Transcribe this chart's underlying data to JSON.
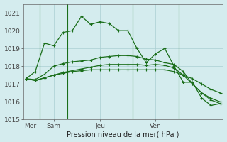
{
  "title": "Pression niveau de la mer( hPa )",
  "background_color": "#d4ecee",
  "grid_color": "#aacfd2",
  "line_color": "#1a6e1a",
  "ylim": [
    1015,
    1021.5
  ],
  "yticks": [
    1015,
    1016,
    1017,
    1018,
    1019,
    1020,
    1021
  ],
  "n_points": 22,
  "vline_positions": [
    1.5,
    4.5,
    11.5,
    16.5
  ],
  "xtick_positions": [
    0.5,
    3.0,
    8.0,
    14.0
  ],
  "day_labels": [
    "Mer",
    "Sam",
    "Jeu",
    "Ven"
  ],
  "series": [
    [
      1017.3,
      1017.7,
      1019.3,
      1019.15,
      1019.9,
      1020.0,
      1020.8,
      1020.35,
      1020.5,
      1020.4,
      1020.0,
      1020.0,
      1019.0,
      1018.2,
      1018.7,
      1019.0,
      1018.0,
      1017.1,
      1017.1,
      1016.2,
      1015.8,
      1015.9
    ],
    [
      1017.3,
      1017.25,
      1017.55,
      1018.0,
      1018.15,
      1018.25,
      1018.3,
      1018.35,
      1018.5,
      1018.55,
      1018.6,
      1018.6,
      1018.55,
      1018.4,
      1018.35,
      1018.2,
      1018.1,
      1017.7,
      1017.0,
      1016.5,
      1016.2,
      1016.0
    ],
    [
      1017.3,
      1017.2,
      1017.35,
      1017.5,
      1017.6,
      1017.7,
      1017.75,
      1017.8,
      1017.8,
      1017.8,
      1017.8,
      1017.8,
      1017.8,
      1017.8,
      1017.8,
      1017.8,
      1017.7,
      1017.5,
      1017.3,
      1017.0,
      1016.7,
      1016.5
    ],
    [
      1017.3,
      1017.2,
      1017.35,
      1017.5,
      1017.65,
      1017.75,
      1017.85,
      1017.95,
      1018.05,
      1018.1,
      1018.1,
      1018.1,
      1018.1,
      1018.05,
      1018.1,
      1018.05,
      1017.9,
      1017.5,
      1017.0,
      1016.5,
      1016.1,
      1015.9
    ]
  ],
  "marker": "+",
  "marker_size": 3.5,
  "line_width": 0.9
}
